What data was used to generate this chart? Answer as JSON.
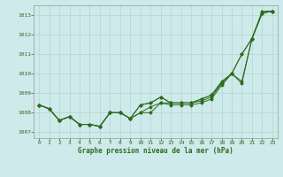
{
  "title": "Graphe pression niveau de la mer (hPa)",
  "x_ticks": [
    0,
    1,
    2,
    3,
    4,
    5,
    6,
    7,
    8,
    9,
    10,
    11,
    12,
    13,
    14,
    15,
    16,
    17,
    18,
    19,
    20,
    21,
    22,
    23
  ],
  "y_ticks": [
    1007,
    1008,
    1009,
    1010,
    1011,
    1012,
    1013
  ],
  "ylim": [
    1006.7,
    1013.5
  ],
  "xlim": [
    -0.5,
    23.5
  ],
  "bg_color": "#ceeaea",
  "line_color": "#2d6b1e",
  "grid_color": "#b0d8d0",
  "series": [
    [
      1008.4,
      1008.2,
      1007.6,
      1007.8,
      1007.4,
      1007.4,
      1007.3,
      1008.0,
      1008.0,
      1007.7,
      1008.0,
      1008.0,
      1008.5,
      1008.4,
      1008.4,
      1008.4,
      1008.5,
      1008.7,
      1009.4,
      1010.0,
      1009.5,
      1011.8,
      1013.2,
      1013.2
    ],
    [
      1008.4,
      1008.2,
      1007.6,
      1007.8,
      1007.4,
      1007.4,
      1007.3,
      1008.0,
      1008.0,
      1007.7,
      1008.0,
      1008.3,
      1008.5,
      1008.5,
      1008.5,
      1008.5,
      1008.6,
      1008.8,
      1009.5,
      1010.0,
      1009.6,
      1011.8,
      1013.1,
      1013.2
    ],
    [
      1008.4,
      1008.2,
      1007.6,
      1007.8,
      1007.4,
      1007.4,
      1007.3,
      1008.0,
      1008.0,
      1007.7,
      1008.4,
      1008.5,
      1008.8,
      1008.5,
      1008.5,
      1008.5,
      1008.7,
      1008.9,
      1009.5,
      1010.0,
      1011.0,
      1011.8,
      1013.1,
      1013.2
    ],
    [
      1008.4,
      1008.2,
      1007.6,
      1007.8,
      1007.4,
      1007.4,
      1007.3,
      1008.0,
      1008.0,
      1007.7,
      1008.4,
      1008.5,
      1008.8,
      1008.5,
      1008.5,
      1008.5,
      1008.7,
      1008.9,
      1009.6,
      1010.0,
      1011.0,
      1011.8,
      1013.1,
      1013.2
    ]
  ]
}
